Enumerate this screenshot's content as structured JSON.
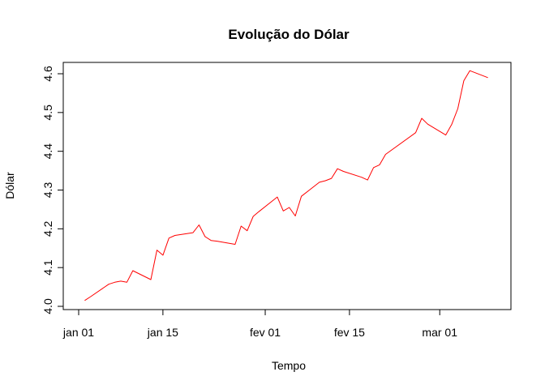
{
  "chart_data": {
    "type": "line",
    "title": "Evolução do Dólar",
    "xlabel": "Tempo",
    "ylabel": "Dólar",
    "ylim": [
      4.0,
      4.6
    ],
    "xlim": [
      "2020-01-01",
      "2020-03-10"
    ],
    "yticks": [
      4.0,
      4.1,
      4.2,
      4.3,
      4.4,
      4.5,
      4.6
    ],
    "yticks_labels": [
      "4.0",
      "4.1",
      "4.2",
      "4.3",
      "4.4",
      "4.5",
      "4.6"
    ],
    "xticks": [
      "2020-01-01",
      "2020-01-15",
      "2020-02-01",
      "2020-02-15",
      "2020-03-01"
    ],
    "xticks_labels": [
      "jan 01",
      "jan 15",
      "fev 01",
      "fev 15",
      "mar 01"
    ],
    "grid": false,
    "series": [
      {
        "color": "#ff0000",
        "x": [
          "2020-01-02",
          "2020-01-03",
          "2020-01-06",
          "2020-01-07",
          "2020-01-08",
          "2020-01-09",
          "2020-01-10",
          "2020-01-13",
          "2020-01-14",
          "2020-01-15",
          "2020-01-16",
          "2020-01-17",
          "2020-01-20",
          "2020-01-21",
          "2020-01-22",
          "2020-01-23",
          "2020-01-24",
          "2020-01-27",
          "2020-01-28",
          "2020-01-29",
          "2020-01-30",
          "2020-01-31",
          "2020-02-03",
          "2020-02-04",
          "2020-02-05",
          "2020-02-06",
          "2020-02-07",
          "2020-02-10",
          "2020-02-11",
          "2020-02-12",
          "2020-02-13",
          "2020-02-14",
          "2020-02-17",
          "2020-02-18",
          "2020-02-19",
          "2020-02-20",
          "2020-02-21",
          "2020-02-26",
          "2020-02-27",
          "2020-02-28",
          "2020-03-02",
          "2020-03-03",
          "2020-03-04",
          "2020-03-05",
          "2020-03-06",
          "2020-03-09"
        ],
        "y": [
          4.015,
          4.025,
          4.057,
          4.062,
          4.065,
          4.062,
          4.092,
          4.069,
          4.145,
          4.132,
          4.176,
          4.183,
          4.19,
          4.21,
          4.18,
          4.17,
          4.168,
          4.16,
          4.207,
          4.195,
          4.232,
          4.245,
          4.282,
          4.246,
          4.255,
          4.233,
          4.284,
          4.32,
          4.324,
          4.33,
          4.355,
          4.348,
          4.333,
          4.326,
          4.358,
          4.365,
          4.392,
          4.448,
          4.485,
          4.47,
          4.442,
          4.47,
          4.51,
          4.582,
          4.608,
          4.59
        ]
      }
    ]
  }
}
